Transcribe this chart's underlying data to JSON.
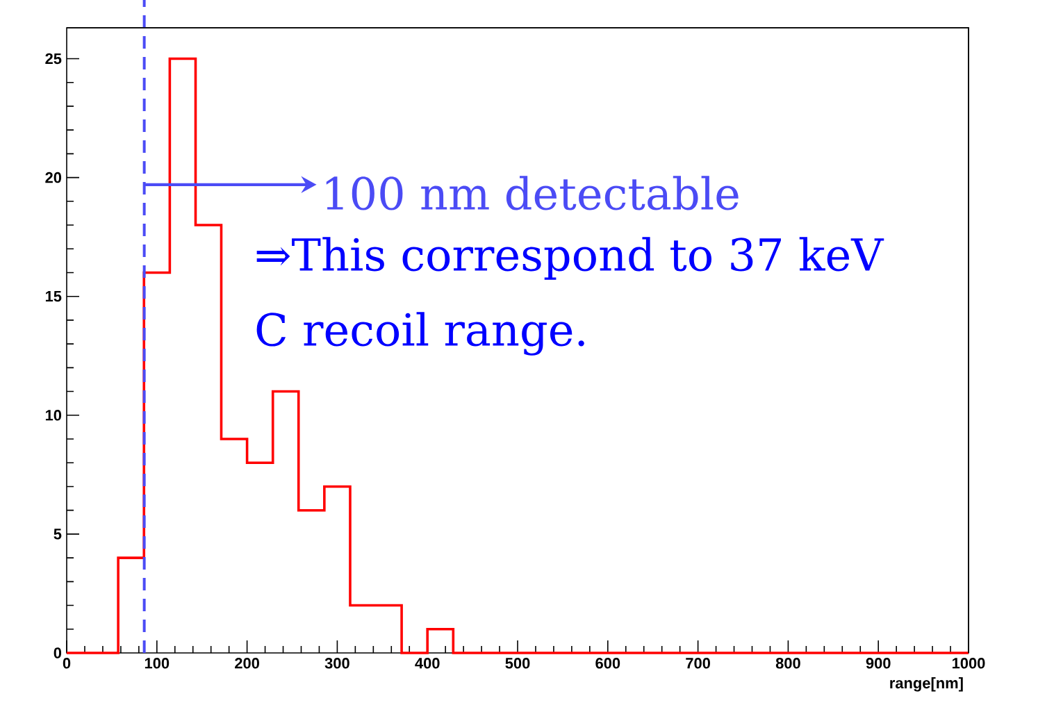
{
  "chart_data": {
    "type": "histogram",
    "xlabel": "range[nm]",
    "bins": [
      0,
      28.6,
      57.1,
      85.7,
      114.3,
      142.9,
      171.4,
      200,
      228.6,
      257.1,
      285.7,
      314.3,
      342.9,
      371.4,
      400,
      428.6,
      457.1,
      485.7,
      514.3,
      542.9,
      571.4,
      600,
      628.6,
      657.1,
      685.7,
      714.3,
      742.9,
      771.4,
      800,
      828.6,
      857.1,
      885.7,
      914.3,
      942.9,
      971.4,
      1000
    ],
    "values": [
      0,
      0,
      4,
      16,
      25,
      18,
      9,
      8,
      11,
      6,
      7,
      2,
      2,
      0,
      1,
      0,
      0,
      0,
      0,
      0,
      0,
      0,
      0,
      0,
      0,
      0,
      0,
      0,
      0,
      0,
      0,
      0,
      0,
      0,
      0
    ],
    "color": "#ff0000",
    "xlim": [
      0,
      1000
    ],
    "ylim": [
      0,
      26.3
    ],
    "xticks": [
      0,
      100,
      200,
      300,
      400,
      500,
      600,
      700,
      800,
      900,
      1000
    ],
    "yticks": [
      0,
      5,
      10,
      15,
      20,
      25
    ],
    "grid": false,
    "ref_lines": [
      {
        "axis": "x",
        "value": 86,
        "label": null,
        "color": "#4b4bf5",
        "line_style": "dashed"
      }
    ],
    "annotations": [
      {
        "text": "100 nm detectable",
        "x": 86,
        "y": 19.7
      },
      "⇒This correspond to 37 keV",
      "C recoil range."
    ]
  }
}
